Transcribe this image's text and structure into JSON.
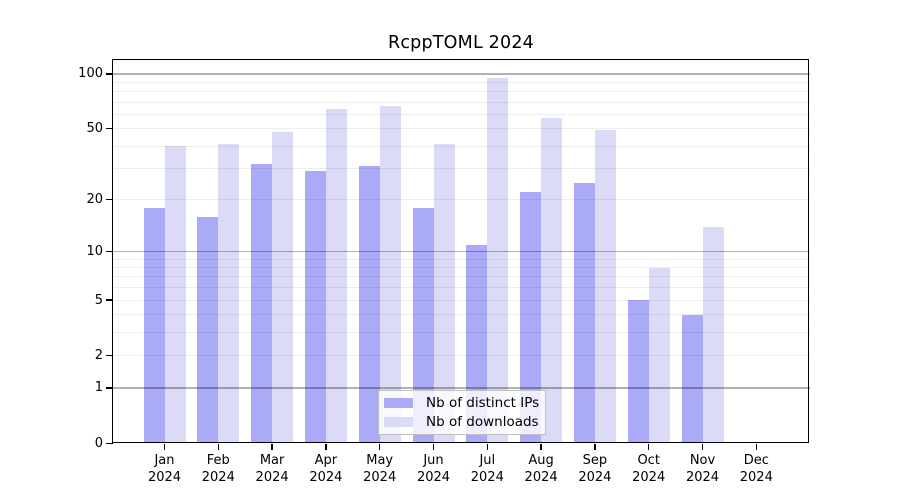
{
  "chart_data": {
    "type": "bar",
    "title": "RcppTOML 2024",
    "scale": "log1p",
    "categories": [
      "Jan",
      "Feb",
      "Mar",
      "Apr",
      "May",
      "Jun",
      "Jul",
      "Aug",
      "Sep",
      "Oct",
      "Nov",
      "Dec"
    ],
    "year": "2024",
    "series": [
      {
        "name": "Nb of distinct IPs",
        "color": "#aaaaf7",
        "values": [
          18,
          16,
          32,
          29,
          31,
          18,
          11,
          22,
          25,
          5,
          4,
          0
        ]
      },
      {
        "name": "Nb of downloads",
        "color": "#dbdbf8",
        "values": [
          40,
          41,
          48,
          64,
          67,
          41,
          95,
          57,
          49,
          8,
          14,
          0
        ]
      }
    ],
    "yticks": [
      0,
      1,
      2,
      5,
      10,
      20,
      50,
      100
    ],
    "ylim": [
      0,
      120
    ],
    "grid": {
      "major_at": [
        1,
        10,
        100
      ],
      "minor_at": [
        2,
        3,
        4,
        5,
        6,
        7,
        8,
        9,
        20,
        30,
        40,
        50,
        60,
        70,
        80,
        90
      ],
      "major_color": "rgba(0,0,0,0.30)",
      "minor_color": "rgba(0,0,0,0.07)"
    },
    "legend_position": "bottom-center",
    "xlabel": "",
    "ylabel": ""
  }
}
